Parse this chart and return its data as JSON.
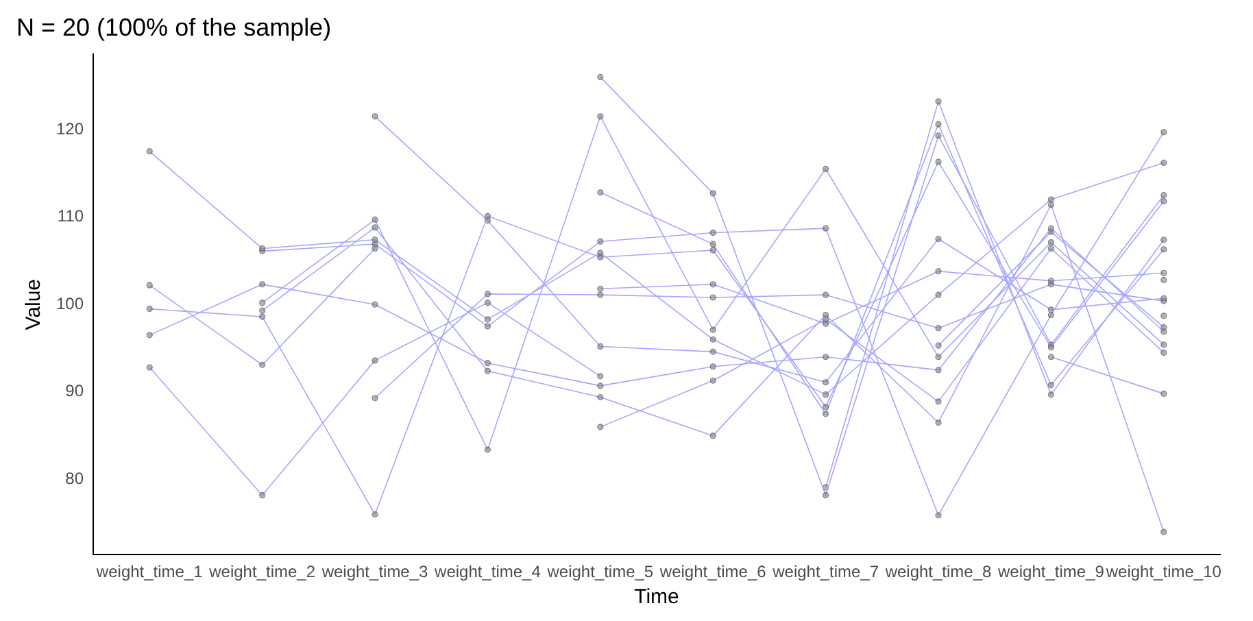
{
  "chart_data": {
    "type": "line",
    "title": "N = 20 (100% of the sample)",
    "xlabel": "Time",
    "ylabel": "Value",
    "categories": [
      "weight_time_1",
      "weight_time_2",
      "weight_time_3",
      "weight_time_4",
      "weight_time_5",
      "weight_time_6",
      "weight_time_7",
      "weight_time_8",
      "weight_time_9",
      "weight_time_10"
    ],
    "ylim": [
      71.4,
      128.6
    ],
    "yticks": [
      80,
      90,
      100,
      110,
      120
    ],
    "grid": false,
    "legend": false,
    "marker": "circle",
    "series": [
      {
        "color": "#a6a6ff",
        "values": [
          117.5,
          106.4,
          107.4,
          98.3,
          105.9,
          96.0,
          89.7,
          101.1,
          112.0,
          116.2
        ]
      },
      {
        "color": "#a6a6ff",
        "values": [
          102.2,
          93.1,
          106.4,
          null,
          null,
          null,
          null,
          null,
          null,
          null
        ]
      },
      {
        "color": "#a6a6ff",
        "values": [
          99.5,
          98.6,
          76.0,
          110.1,
          105.4,
          106.2,
          88.3,
          116.3,
          95.1,
          111.8
        ]
      },
      {
        "color": "#a6a6ff",
        "values": [
          96.5,
          102.3,
          100.0,
          93.3,
          90.7,
          92.9,
          94.0,
          92.5,
          108.7,
          96.9
        ]
      },
      {
        "color": "#a6a6ff",
        "values": [
          92.8,
          78.2,
          93.6,
          100.2,
          91.8,
          null,
          null,
          null,
          null,
          null
        ]
      },
      {
        "color": "#a6a6ff",
        "values": [
          null,
          106.1,
          106.9,
          97.5,
          107.2,
          108.2,
          108.7,
          75.9,
          98.8,
          119.7
        ]
      },
      {
        "color": "#a6a6ff",
        "values": [
          null,
          100.2,
          109.7,
          83.4,
          121.5,
          97.1,
          115.5,
          94.0,
          107.1,
          95.4
        ]
      },
      {
        "color": "#a6a6ff",
        "values": [
          null,
          99.3,
          108.8,
          92.4,
          89.4,
          85.0,
          98.8,
          86.5,
          111.4,
          74.0
        ]
      },
      {
        "color": "#a6a6ff",
        "values": [
          null,
          null,
          121.5,
          109.6,
          95.2,
          94.6,
          91.1,
          107.5,
          99.4,
          100.7
        ]
      },
      {
        "color": "#a6a6ff",
        "values": [
          null,
          null,
          89.3,
          101.2,
          101.1,
          100.8,
          101.1,
          97.3,
          102.3,
          100.4
        ]
      },
      {
        "color": "#a6a6ff",
        "values": [
          null,
          null,
          null,
          null,
          126.0,
          112.7,
          78.2,
          119.3,
          95.4,
          112.5
        ]
      },
      {
        "color": "#a6a6ff",
        "values": [
          null,
          null,
          null,
          null,
          112.8,
          106.9,
          87.5,
          120.6,
          90.8,
          106.3
        ]
      },
      {
        "color": "#a6a6ff",
        "values": [
          null,
          null,
          null,
          null,
          101.8,
          102.3,
          97.8,
          103.8,
          102.7,
          103.6
        ]
      },
      {
        "color": "#a6a6ff",
        "values": [
          null,
          null,
          null,
          null,
          86.0,
          91.3,
          98.3,
          88.9,
          106.4,
          94.5
        ]
      },
      {
        "color": "#a6a6ff",
        "values": [
          null,
          null,
          null,
          null,
          null,
          null,
          79.1,
          123.2,
          89.7,
          107.4
        ]
      },
      {
        "color": "#a6a6ff",
        "values": [
          null,
          null,
          null,
          null,
          null,
          null,
          null,
          95.3,
          108.3,
          97.4
        ]
      },
      {
        "color": "#a6a6ff",
        "values": [
          null,
          null,
          null,
          null,
          null,
          null,
          null,
          null,
          94.0,
          89.8
        ]
      },
      {
        "color": "#787878",
        "values": [
          null,
          null,
          null,
          null,
          null,
          null,
          null,
          null,
          null,
          102.8
        ]
      },
      {
        "color": "#787878",
        "values": [
          null,
          null,
          null,
          null,
          null,
          null,
          null,
          null,
          null,
          98.7
        ]
      }
    ]
  }
}
